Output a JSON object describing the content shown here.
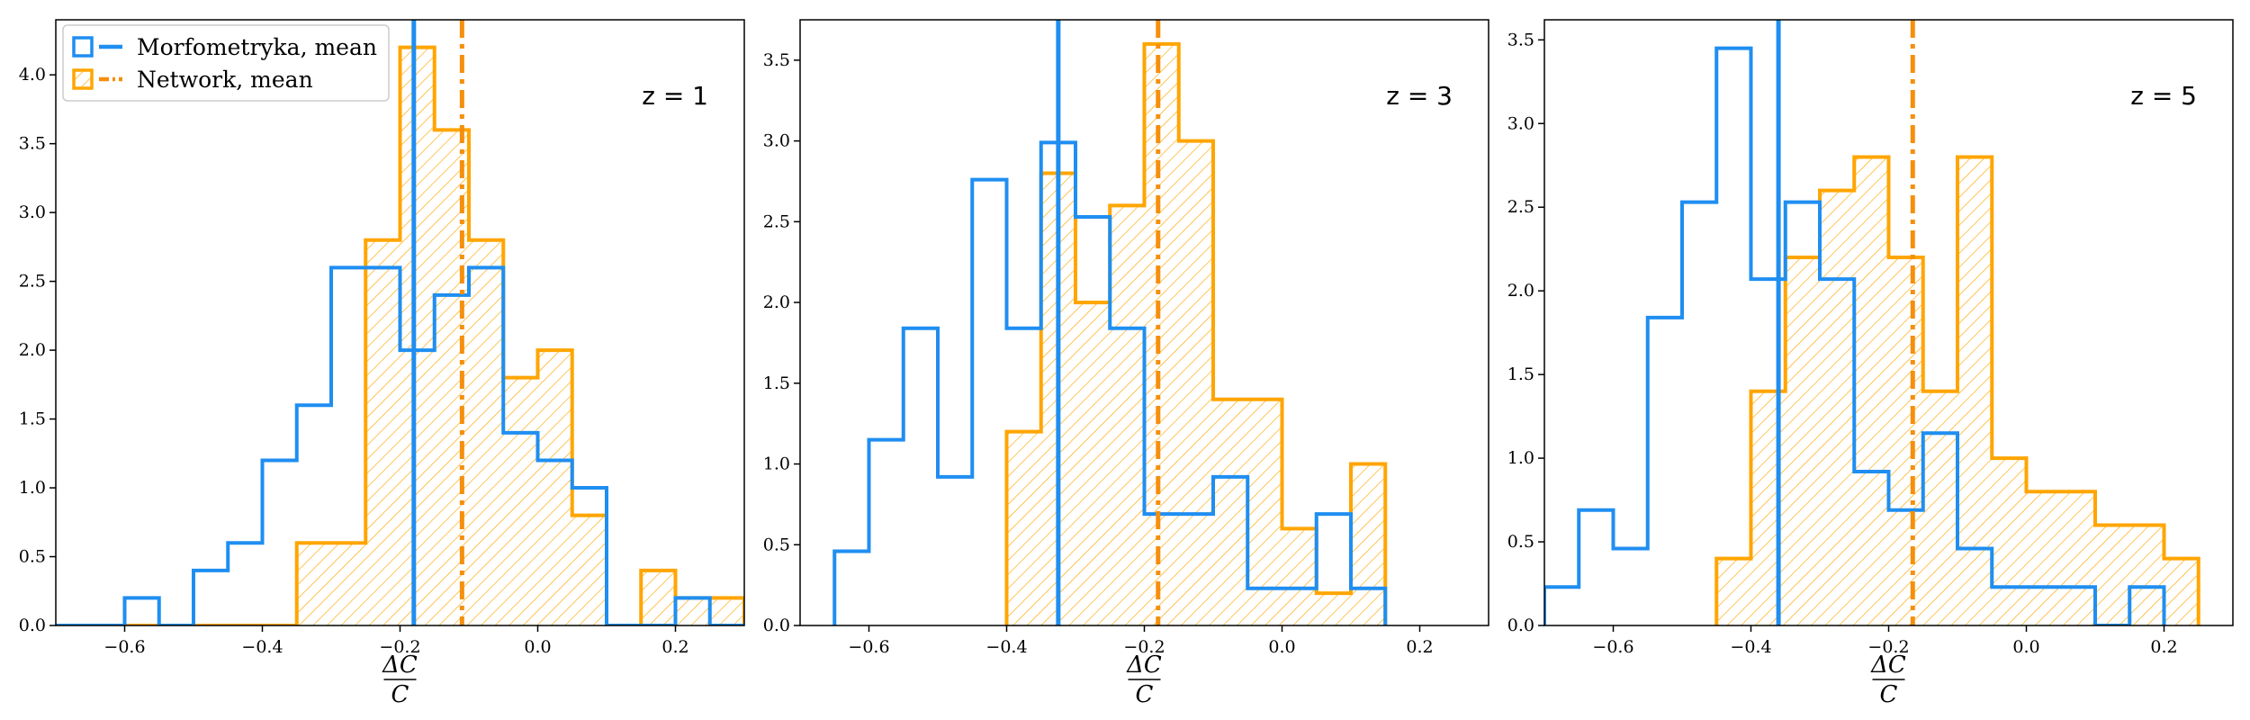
{
  "colors": {
    "morf": "#1f8ef1",
    "net": "#ffa500",
    "net_mean": "#f58f0c",
    "axis": "#000000"
  },
  "legend": [
    {
      "label": "Morfometryka, mean",
      "style": "step-solid",
      "color": "#1f8ef1"
    },
    {
      "label": "Network, mean",
      "style": "hatched-dashdot",
      "color": "#ffa500"
    }
  ],
  "xlabel_num": "ΔC",
  "xlabel_den": "C",
  "chart_data": [
    {
      "type": "histogram",
      "annotation": "z = 1",
      "xlim": [
        -0.7,
        0.3
      ],
      "ylim": [
        0,
        4.4
      ],
      "xticks": [
        -0.6,
        -0.4,
        -0.2,
        0.0,
        0.2
      ],
      "xtick_labels": [
        "−0.6",
        "−0.4",
        "−0.2",
        "0.0",
        "0.2"
      ],
      "yticks": [
        0,
        0.5,
        1.0,
        1.5,
        2.0,
        2.5,
        3.0,
        3.5,
        4.0
      ],
      "ytick_labels": [
        "0.0",
        "0.5",
        "1.0",
        "1.5",
        "2.0",
        "2.5",
        "3.0",
        "3.5",
        "4.0"
      ],
      "series": [
        {
          "name": "Morfometryka, mean",
          "style": "step",
          "bins": [
            -0.7,
            -0.65,
            -0.6,
            -0.55,
            -0.5,
            -0.45,
            -0.4,
            -0.35,
            -0.3,
            -0.25,
            -0.2,
            -0.15,
            -0.1,
            -0.05,
            0.0,
            0.05,
            0.1,
            0.15,
            0.2,
            0.25,
            0.3
          ],
          "values": [
            0,
            0,
            0.2,
            0,
            0.4,
            0.6,
            1.2,
            1.6,
            2.6,
            2.6,
            2.0,
            2.4,
            2.6,
            1.4,
            1.2,
            1.0,
            0,
            0,
            0.2,
            0
          ],
          "mean": -0.18
        },
        {
          "name": "Network, mean",
          "style": "hatched",
          "bins": [
            -0.7,
            -0.65,
            -0.6,
            -0.55,
            -0.5,
            -0.45,
            -0.4,
            -0.35,
            -0.3,
            -0.25,
            -0.2,
            -0.15,
            -0.1,
            -0.05,
            0.0,
            0.05,
            0.1,
            0.15,
            0.2,
            0.25,
            0.3
          ],
          "values": [
            0,
            0,
            0,
            0,
            0,
            0,
            0,
            0.6,
            0.6,
            2.8,
            4.2,
            3.6,
            2.8,
            1.8,
            2.0,
            0.8,
            0,
            0.4,
            0.2,
            0.2
          ],
          "mean": -0.11
        }
      ]
    },
    {
      "type": "histogram",
      "annotation": "z = 3",
      "xlim": [
        -0.7,
        0.3
      ],
      "ylim": [
        0,
        3.75
      ],
      "xticks": [
        -0.6,
        -0.4,
        -0.2,
        0.0,
        0.2
      ],
      "xtick_labels": [
        "−0.6",
        "−0.4",
        "−0.2",
        "0.0",
        "0.2"
      ],
      "yticks": [
        0,
        0.5,
        1.0,
        1.5,
        2.0,
        2.5,
        3.0,
        3.5
      ],
      "ytick_labels": [
        "0.0",
        "0.5",
        "1.0",
        "1.5",
        "2.0",
        "2.5",
        "3.0",
        "3.5"
      ],
      "series": [
        {
          "name": "Morfometryka, mean",
          "style": "step",
          "bins": [
            -0.65,
            -0.6,
            -0.55,
            -0.5,
            -0.45,
            -0.4,
            -0.35,
            -0.3,
            -0.25,
            -0.2,
            -0.15,
            -0.1,
            -0.05,
            0.0,
            0.05,
            0.1,
            0.15
          ],
          "values": [
            0.46,
            1.15,
            1.84,
            0.92,
            2.76,
            1.84,
            2.99,
            2.53,
            1.84,
            0.69,
            0.69,
            0.92,
            0.23,
            0.23,
            0.69,
            0.23
          ],
          "mean": -0.325
        },
        {
          "name": "Network, mean",
          "style": "hatched",
          "bins": [
            -0.4,
            -0.35,
            -0.3,
            -0.25,
            -0.2,
            -0.15,
            -0.1,
            -0.05,
            0.0,
            0.05,
            0.1,
            0.15
          ],
          "values": [
            1.2,
            2.8,
            2.0,
            2.6,
            3.6,
            3.0,
            1.4,
            1.4,
            0.6,
            0.2,
            1.0
          ],
          "mean": -0.18
        }
      ]
    },
    {
      "type": "histogram",
      "annotation": "z = 5",
      "xlim": [
        -0.7,
        0.3
      ],
      "ylim": [
        0,
        3.62
      ],
      "xticks": [
        -0.6,
        -0.4,
        -0.2,
        0.0,
        0.2
      ],
      "xtick_labels": [
        "−0.6",
        "−0.4",
        "−0.2",
        "0.0",
        "0.2"
      ],
      "yticks": [
        0,
        0.5,
        1.0,
        1.5,
        2.0,
        2.5,
        3.0,
        3.5
      ],
      "ytick_labels": [
        "0.0",
        "0.5",
        "1.0",
        "1.5",
        "2.0",
        "2.5",
        "3.0",
        "3.5"
      ],
      "series": [
        {
          "name": "Morfometryka, mean",
          "style": "step",
          "bins": [
            -0.7,
            -0.65,
            -0.6,
            -0.55,
            -0.5,
            -0.45,
            -0.4,
            -0.35,
            -0.3,
            -0.25,
            -0.2,
            -0.15,
            -0.1,
            -0.05,
            0.0,
            0.05,
            0.1,
            0.15,
            0.2
          ],
          "values": [
            0.23,
            0.69,
            0.46,
            1.84,
            2.53,
            3.45,
            2.07,
            2.53,
            2.07,
            0.92,
            0.69,
            1.15,
            0.46,
            0.23,
            0.23,
            0.23,
            0,
            0.23
          ],
          "mean": -0.36
        },
        {
          "name": "Network, mean",
          "style": "hatched",
          "bins": [
            -0.45,
            -0.4,
            -0.35,
            -0.3,
            -0.25,
            -0.2,
            -0.15,
            -0.1,
            -0.05,
            0.0,
            0.05,
            0.1,
            0.15,
            0.2,
            0.25
          ],
          "values": [
            0.4,
            1.4,
            2.2,
            2.6,
            2.8,
            2.2,
            1.4,
            2.8,
            1.0,
            0.8,
            0.8,
            0.6,
            0.6,
            0.4
          ],
          "mean": -0.165
        }
      ]
    }
  ]
}
